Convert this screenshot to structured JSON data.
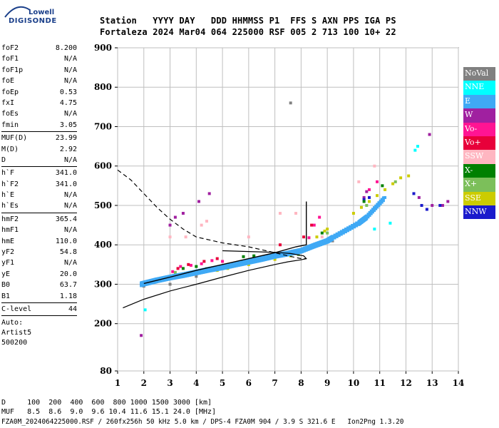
{
  "logo": {
    "line1": "Lowell",
    "line2": "DIGISONDE"
  },
  "header": {
    "line1": "Station   YYYY DAY   DDD HHMMSS P1  FFS S AXN PPS IGA PS",
    "line2": "Fortaleza 2024 Mar04 064 225000 RSF 005 2 713 100 10+ 22"
  },
  "sidebar": {
    "group1": [
      {
        "k": "foF2",
        "v": "8.200"
      },
      {
        "k": "foF1",
        "v": "N/A"
      },
      {
        "k": "foF1p",
        "v": "N/A"
      },
      {
        "k": "foE",
        "v": "N/A"
      },
      {
        "k": "foEp",
        "v": "0.53"
      },
      {
        "k": "fxI",
        "v": "4.75"
      },
      {
        "k": "foEs",
        "v": "N/A"
      },
      {
        "k": "fmin",
        "v": "3.05"
      }
    ],
    "group2": [
      {
        "k": "MUF(D)",
        "v": "23.99"
      },
      {
        "k": "M(D)",
        "v": "2.92"
      },
      {
        "k": "D",
        "v": "N/A"
      }
    ],
    "group3": [
      {
        "k": "h`F",
        "v": "341.0"
      },
      {
        "k": "h`F2",
        "v": "341.0"
      },
      {
        "k": "h`E",
        "v": "N/A"
      },
      {
        "k": "h`Es",
        "v": "N/A"
      }
    ],
    "group4": [
      {
        "k": "hmF2",
        "v": "365.4"
      },
      {
        "k": "hmF1",
        "v": "N/A"
      },
      {
        "k": "hmE",
        "v": "110.0"
      },
      {
        "k": "yF2",
        "v": "54.8"
      },
      {
        "k": "yF1",
        "v": "N/A"
      },
      {
        "k": "yE",
        "v": "20.0"
      },
      {
        "k": "B0",
        "v": "63.7"
      },
      {
        "k": "B1",
        "v": "1.18"
      }
    ],
    "group5": [
      {
        "k": "C-level",
        "v": "44"
      }
    ],
    "auto": [
      "Auto:",
      "Artist5",
      "500200"
    ]
  },
  "legend": [
    {
      "label": "NoVal",
      "color": "#808080"
    },
    {
      "label": "NNE",
      "color": "#00ffff"
    },
    {
      "label": "E",
      "color": "#3fa9f5"
    },
    {
      "label": "W",
      "color": "#a020a0"
    },
    {
      "label": "Vo-",
      "color": "#ff1493"
    },
    {
      "label": "Vo+",
      "color": "#e8003a"
    },
    {
      "label": "SSW",
      "color": "#ffb6c1"
    },
    {
      "label": "X-",
      "color": "#008000"
    },
    {
      "label": "X+",
      "color": "#7cbf5a"
    },
    {
      "label": "SSE",
      "color": "#cccc00"
    },
    {
      "label": "NNW",
      "color": "#1a1acc"
    }
  ],
  "footer": {
    "line1": "D     100  200  400  600  800 1000 1500 3000 [km]",
    "line2": "MUF   8.5  8.6  9.0  9.6 10.4 11.6 15.1 24.0 [MHz]",
    "line3": "FZA0M_2024064225000.RSF / 260fx256h 50 kHz 5.0 km / DPS-4 FZA0M 904 / 3.9 S 321.6 E   Ion2Png 1.3.20"
  },
  "chart_data": {
    "type": "scatter",
    "xlim": [
      1,
      14
    ],
    "ylim": [
      80,
      900
    ],
    "x_ticks": [
      1,
      2,
      3,
      4,
      5,
      6,
      7,
      8,
      9,
      10,
      11,
      12,
      13,
      14
    ],
    "y_ticks": [
      80,
      200,
      300,
      400,
      500,
      600,
      700,
      800,
      900
    ],
    "grid": true,
    "legend_position": "right",
    "profile_solid": [
      [
        1.2,
        240
      ],
      [
        2,
        262
      ],
      [
        3,
        283
      ],
      [
        4,
        300
      ],
      [
        5,
        318
      ],
      [
        6,
        335
      ],
      [
        7,
        350
      ],
      [
        7.5,
        357
      ],
      [
        8,
        362
      ],
      [
        8.2,
        365
      ],
      [
        8.1,
        372
      ],
      [
        7.6,
        378
      ],
      [
        7,
        381
      ],
      [
        6,
        383
      ],
      [
        5,
        385
      ]
    ],
    "profile_dashed": [
      [
        1,
        590
      ],
      [
        1.5,
        565
      ],
      [
        2,
        530
      ],
      [
        2.5,
        495
      ],
      [
        3,
        465
      ],
      [
        3.5,
        440
      ],
      [
        4,
        420
      ],
      [
        5,
        405
      ],
      [
        6,
        395
      ],
      [
        7,
        380
      ],
      [
        7.5,
        372
      ],
      [
        8,
        365
      ],
      [
        8.2,
        365
      ]
    ],
    "trace_h": [
      [
        2,
        302
      ],
      [
        3,
        318
      ],
      [
        4,
        335
      ],
      [
        5,
        350
      ],
      [
        6,
        365
      ],
      [
        7,
        380
      ],
      [
        7.8,
        395
      ],
      [
        8.2,
        400
      ],
      [
        8.2,
        450
      ],
      [
        8.2,
        510
      ]
    ],
    "traces": [
      {
        "color": "#3fa9f5",
        "points": [
          [
            1.9,
            300
          ],
          [
            2.2,
            305
          ],
          [
            2.5,
            310
          ],
          [
            3,
            317
          ],
          [
            3.5,
            323
          ],
          [
            4,
            330
          ],
          [
            4.5,
            337
          ],
          [
            5,
            343
          ],
          [
            5.5,
            350
          ],
          [
            6,
            357
          ],
          [
            6.5,
            364
          ],
          [
            7,
            372
          ],
          [
            7.5,
            378
          ],
          [
            8,
            385
          ],
          [
            8.5,
            398
          ],
          [
            9,
            410
          ],
          [
            9.2,
            418
          ],
          [
            10.2,
            455
          ],
          [
            10.5,
            470
          ],
          [
            11.2,
            520
          ]
        ]
      },
      {
        "color": "#cccc00",
        "points": [
          [
            4.8,
            335
          ],
          [
            5.2,
            340
          ],
          [
            6,
            350
          ],
          [
            7,
            363
          ],
          [
            7.6,
            372
          ],
          [
            8.6,
            420
          ],
          [
            8.9,
            435
          ],
          [
            9,
            440
          ],
          [
            10,
            480
          ],
          [
            10.3,
            495
          ],
          [
            10.6,
            510
          ],
          [
            10.9,
            525
          ],
          [
            11.2,
            540
          ],
          [
            11.5,
            555
          ],
          [
            11.8,
            570
          ],
          [
            12.1,
            575
          ]
        ]
      },
      {
        "color": "#ff1493",
        "points": [
          [
            3.1,
            332
          ],
          [
            3.4,
            345
          ],
          [
            3.8,
            348
          ],
          [
            4.2,
            352
          ],
          [
            4.6,
            360
          ],
          [
            5,
            358
          ],
          [
            5.8,
            357
          ],
          [
            8.3,
            418
          ],
          [
            8.5,
            450
          ],
          [
            8.7,
            470
          ],
          [
            10.6,
            540
          ],
          [
            10.9,
            560
          ]
        ]
      },
      {
        "color": "#e8003a",
        "points": [
          [
            3.3,
            340
          ],
          [
            3.7,
            350
          ],
          [
            4.3,
            358
          ],
          [
            4.8,
            365
          ],
          [
            7.2,
            400
          ],
          [
            8.1,
            420
          ],
          [
            8.4,
            450
          ]
        ]
      },
      {
        "color": "#a020a0",
        "points": [
          [
            1.9,
            170
          ],
          [
            3,
            450
          ],
          [
            3.2,
            470
          ],
          [
            3.5,
            480
          ],
          [
            4.1,
            510
          ],
          [
            4.5,
            530
          ],
          [
            10.4,
            520
          ],
          [
            10.5,
            535
          ],
          [
            12.5,
            520
          ],
          [
            13,
            500
          ],
          [
            13.4,
            500
          ],
          [
            13.6,
            510
          ],
          [
            12.9,
            680
          ]
        ]
      },
      {
        "color": "#1a1acc",
        "points": [
          [
            10.4,
            515
          ],
          [
            10.6,
            520
          ],
          [
            12.6,
            500
          ],
          [
            12.8,
            490
          ],
          [
            13.3,
            500
          ],
          [
            12.3,
            530
          ]
        ]
      },
      {
        "color": "#00ffff",
        "points": [
          [
            2.05,
            235
          ],
          [
            12.35,
            640
          ],
          [
            12.45,
            650
          ],
          [
            11.4,
            455
          ],
          [
            10.8,
            440
          ]
        ]
      },
      {
        "color": "#ffb6c1",
        "points": [
          [
            3,
            420
          ],
          [
            3.6,
            420
          ],
          [
            4.2,
            450
          ],
          [
            4.4,
            460
          ],
          [
            6,
            420
          ],
          [
            7.2,
            480
          ],
          [
            7.8,
            480
          ],
          [
            8.8,
            420
          ],
          [
            10.8,
            600
          ],
          [
            10.2,
            560
          ]
        ]
      },
      {
        "color": "#008000",
        "points": [
          [
            3.5,
            340
          ],
          [
            4,
            345
          ],
          [
            5.8,
            370
          ],
          [
            6.2,
            372
          ],
          [
            7.5,
            380
          ],
          [
            8.8,
            430
          ],
          [
            10.4,
            510
          ],
          [
            11.1,
            550
          ]
        ]
      },
      {
        "color": "#7cbf5a",
        "points": [
          [
            3.2,
            330
          ],
          [
            4.4,
            340
          ],
          [
            6,
            360
          ],
          [
            6.7,
            365
          ],
          [
            7.9,
            375
          ],
          [
            9,
            430
          ],
          [
            10.5,
            500
          ],
          [
            11.6,
            560
          ]
        ]
      },
      {
        "color": "#808080",
        "points": [
          [
            2,
            295
          ],
          [
            3,
            300
          ],
          [
            4,
            320
          ],
          [
            9.2,
            410
          ],
          [
            7.6,
            760
          ]
        ]
      }
    ]
  }
}
